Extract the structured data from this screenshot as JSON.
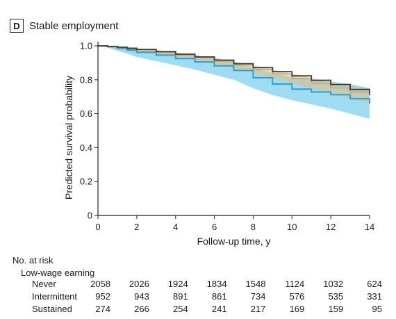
{
  "panel": {
    "letter": "D",
    "title": "Stable employment"
  },
  "chart_data": {
    "type": "line",
    "xlabel": "Follow-up time, y",
    "ylabel": "Predicted survival probability",
    "xlim": [
      0,
      14
    ],
    "ylim": [
      0,
      1.0
    ],
    "xticks": [
      "0",
      "2",
      "4",
      "6",
      "8",
      "10",
      "12",
      "14"
    ],
    "yticks": [
      "0",
      "0.2",
      "0.4",
      "0.6",
      "0.8",
      "1.0"
    ],
    "colors": {
      "never": "#3b3b3b",
      "intermittent": "#c8a56a",
      "sustained": "#2a9fd0",
      "sustained_ci": "#7fd0ee",
      "intermittent_ci": "#d9c08f"
    },
    "series": [
      {
        "key": "sustained",
        "x": [
          0,
          0.5,
          1,
          1.5,
          2,
          3,
          4,
          5,
          6,
          7,
          8,
          9,
          10,
          11,
          12,
          13,
          14
        ],
        "values": [
          1.0,
          0.995,
          0.985,
          0.975,
          0.962,
          0.945,
          0.925,
          0.905,
          0.882,
          0.855,
          0.812,
          0.775,
          0.745,
          0.728,
          0.712,
          0.688,
          0.66
        ],
        "ci_low": [
          1.0,
          0.99,
          0.97,
          0.955,
          0.935,
          0.91,
          0.885,
          0.86,
          0.83,
          0.8,
          0.75,
          0.71,
          0.68,
          0.655,
          0.63,
          0.6,
          0.57
        ],
        "ci_high": [
          1.0,
          1.0,
          0.998,
          0.993,
          0.985,
          0.975,
          0.96,
          0.945,
          0.93,
          0.905,
          0.87,
          0.84,
          0.815,
          0.8,
          0.79,
          0.775,
          0.75
        ]
      },
      {
        "key": "intermittent",
        "x": [
          0,
          0.5,
          1,
          1.5,
          2,
          3,
          4,
          5,
          6,
          7,
          8,
          9,
          10,
          11,
          12,
          13,
          14
        ],
        "values": [
          1.0,
          0.996,
          0.99,
          0.984,
          0.976,
          0.962,
          0.946,
          0.93,
          0.91,
          0.888,
          0.862,
          0.835,
          0.808,
          0.78,
          0.752,
          0.728,
          0.705
        ],
        "ci_low": [
          1.0,
          0.993,
          0.984,
          0.976,
          0.966,
          0.95,
          0.932,
          0.914,
          0.892,
          0.868,
          0.84,
          0.81,
          0.78,
          0.75,
          0.72,
          0.69,
          0.66
        ],
        "ci_high": [
          1.0,
          1.0,
          0.996,
          0.992,
          0.986,
          0.974,
          0.96,
          0.946,
          0.928,
          0.908,
          0.884,
          0.86,
          0.836,
          0.81,
          0.785,
          0.765,
          0.75
        ]
      },
      {
        "key": "never",
        "x": [
          0,
          0.5,
          1,
          1.5,
          2,
          3,
          4,
          5,
          6,
          7,
          8,
          9,
          10,
          11,
          12,
          13,
          14
        ],
        "values": [
          1.0,
          0.997,
          0.992,
          0.986,
          0.979,
          0.966,
          0.951,
          0.935,
          0.916,
          0.895,
          0.872,
          0.848,
          0.823,
          0.797,
          0.772,
          0.743,
          0.713
        ]
      }
    ]
  },
  "risk_table": {
    "header": "No. at risk",
    "group_label": "Low-wage earning",
    "rows": [
      {
        "label": "Never",
        "values": [
          "2058",
          "2026",
          "1924",
          "1834",
          "1548",
          "1124",
          "1032",
          "624"
        ]
      },
      {
        "label": "Intermittent",
        "values": [
          "952",
          "943",
          "891",
          "861",
          "734",
          "576",
          "535",
          "331"
        ]
      },
      {
        "label": "Sustained",
        "values": [
          "274",
          "266",
          "254",
          "241",
          "217",
          "169",
          "159",
          "95"
        ]
      }
    ]
  }
}
